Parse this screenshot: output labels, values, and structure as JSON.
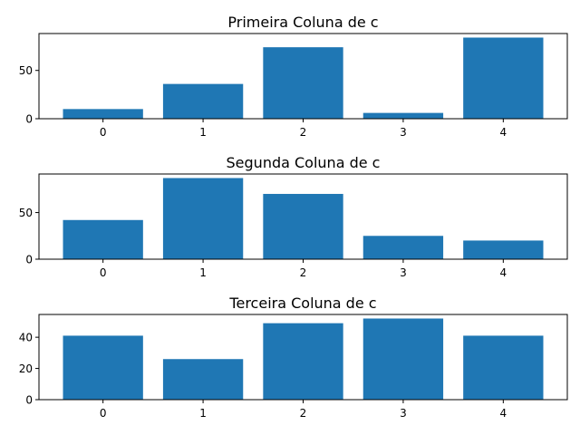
{
  "chart_data": [
    {
      "type": "bar",
      "title": "Primeira Coluna de c",
      "categories": [
        "0",
        "1",
        "2",
        "3",
        "4"
      ],
      "values": [
        10,
        36,
        74,
        6,
        84
      ],
      "ylim": [
        0,
        88.2
      ],
      "yticks": [
        0,
        50
      ],
      "color": "#1f77b4",
      "grid": false
    },
    {
      "type": "bar",
      "title": "Segunda Coluna de c",
      "categories": [
        "0",
        "1",
        "2",
        "3",
        "4"
      ],
      "values": [
        42,
        87,
        70,
        25,
        20
      ],
      "ylim": [
        0,
        91.35
      ],
      "yticks": [
        0,
        50
      ],
      "color": "#1f77b4",
      "grid": false
    },
    {
      "type": "bar",
      "title": "Terceira Coluna de c",
      "categories": [
        "0",
        "1",
        "2",
        "3",
        "4"
      ],
      "values": [
        41,
        26,
        49,
        52,
        41
      ],
      "ylim": [
        0,
        54.6
      ],
      "yticks": [
        0,
        20,
        40
      ],
      "color": "#1f77b4",
      "grid": false
    }
  ]
}
